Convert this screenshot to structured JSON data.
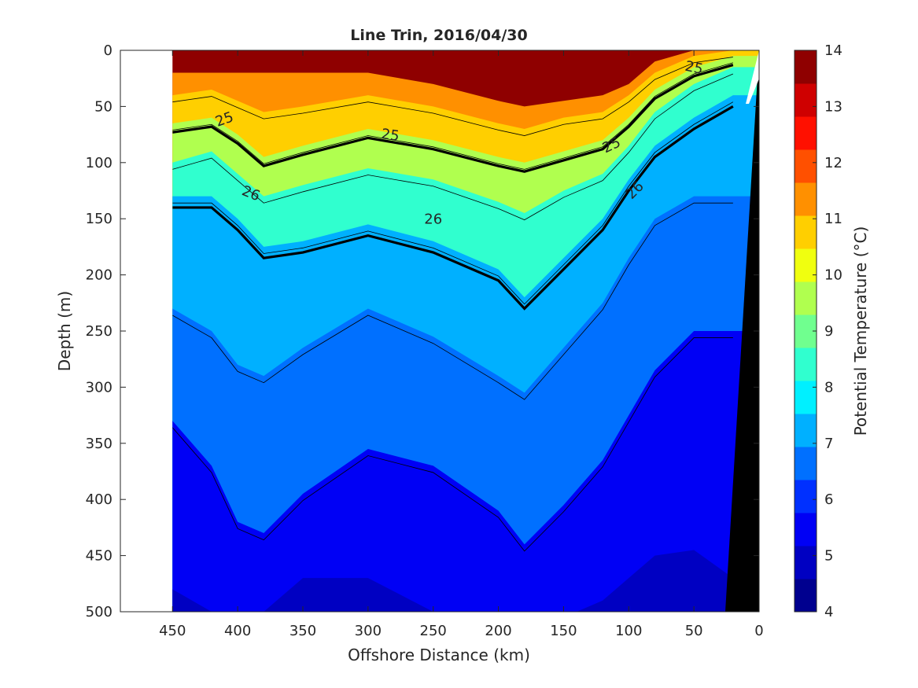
{
  "chart_data": {
    "type": "heatmap",
    "title": "Line Trin, 2016/04/30",
    "xlabel": "Offshore Distance (km)",
    "ylabel": "Depth (m)",
    "colorbar_label": "Potential Temperature (°C)",
    "xlim": [
      490,
      0
    ],
    "x_reversed": true,
    "ylim": [
      0,
      500
    ],
    "y_reversed": true,
    "x_ticks": [
      450,
      400,
      350,
      300,
      250,
      200,
      150,
      100,
      50,
      0
    ],
    "y_ticks": [
      0,
      50,
      100,
      150,
      200,
      250,
      300,
      350,
      400,
      450,
      500
    ],
    "colorbar_range": [
      4,
      14
    ],
    "colorbar_ticks": [
      4,
      5,
      6,
      7,
      8,
      9,
      10,
      11,
      12,
      13,
      14
    ],
    "colorbar_colors": [
      "#00008f",
      "#0000c2",
      "#0000f5",
      "#0030ff",
      "#0070ff",
      "#00b0ff",
      "#00f0ff",
      "#30ffcf",
      "#70ff8f",
      "#b0ff4f",
      "#f0ff0f",
      "#ffcf00",
      "#ff9000",
      "#ff5000",
      "#ff1000",
      "#cf0000",
      "#8f0000"
    ],
    "data_x_range_km": [
      0,
      450
    ],
    "isotherm_profiles": {
      "x_km": [
        450,
        420,
        400,
        380,
        350,
        300,
        250,
        200,
        180,
        150,
        120,
        100,
        80,
        50,
        20
      ],
      "t12": [
        20,
        20,
        20,
        20,
        20,
        20,
        30,
        45,
        50,
        45,
        40,
        30,
        10,
        0,
        0
      ],
      "t11": [
        40,
        35,
        45,
        55,
        50,
        40,
        50,
        65,
        70,
        60,
        55,
        40,
        20,
        5,
        0
      ],
      "t10": [
        65,
        60,
        75,
        95,
        85,
        70,
        80,
        95,
        100,
        90,
        80,
        60,
        35,
        15,
        5
      ],
      "t9": [
        100,
        90,
        110,
        130,
        120,
        105,
        115,
        135,
        145,
        125,
        110,
        85,
        55,
        30,
        15
      ],
      "t8": [
        130,
        130,
        150,
        175,
        170,
        155,
        170,
        195,
        220,
        185,
        150,
        115,
        85,
        60,
        40
      ],
      "t7": [
        230,
        250,
        280,
        290,
        265,
        230,
        255,
        290,
        305,
        265,
        225,
        185,
        150,
        130,
        130
      ],
      "t6": [
        330,
        370,
        420,
        430,
        395,
        355,
        370,
        410,
        440,
        405,
        365,
        325,
        285,
        250,
        250
      ],
      "t5": [
        480,
        500,
        510,
        500,
        470,
        470,
        500,
        520,
        525,
        505,
        490,
        470,
        450,
        445,
        470
      ]
    },
    "contour_labels": [
      {
        "text": "25",
        "x": 410,
        "y": 62,
        "rot": -20
      },
      {
        "text": "25",
        "x": 283,
        "y": 76,
        "rot": 8
      },
      {
        "text": "25",
        "x": 113,
        "y": 85,
        "rot": -25
      },
      {
        "text": "25",
        "x": 50,
        "y": 16,
        "rot": 12
      },
      {
        "text": "26",
        "x": 390,
        "y": 128,
        "rot": 22
      },
      {
        "text": "26",
        "x": 250,
        "y": 151,
        "rot": 0
      },
      {
        "text": "26",
        "x": 95,
        "y": 125,
        "rot": -45
      }
    ]
  }
}
